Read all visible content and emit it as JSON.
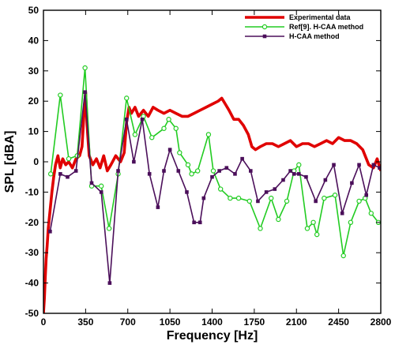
{
  "chart_data": {
    "type": "line",
    "xlabel": "Frequency [Hz]",
    "ylabel": "SPL [dBA]",
    "xlim": [
      0,
      2800
    ],
    "ylim": [
      -50,
      50
    ],
    "x_ticks": [
      0,
      350,
      700,
      1050,
      1400,
      1750,
      2100,
      2450,
      2800
    ],
    "y_ticks": [
      -50,
      -40,
      -30,
      -20,
      -10,
      0,
      10,
      20,
      30,
      40,
      50
    ],
    "legend_position": "top-right",
    "grid": false,
    "series": [
      {
        "name": "Experimental data",
        "color": "#e00000",
        "marker": "none",
        "points": [
          [
            0,
            -50
          ],
          [
            8,
            -45
          ],
          [
            15,
            -38
          ],
          [
            22,
            -32
          ],
          [
            30,
            -28
          ],
          [
            40,
            -22
          ],
          [
            55,
            -16
          ],
          [
            70,
            -10
          ],
          [
            85,
            -5
          ],
          [
            100,
            -1
          ],
          [
            120,
            2
          ],
          [
            140,
            -2
          ],
          [
            160,
            1
          ],
          [
            185,
            -1
          ],
          [
            210,
            0
          ],
          [
            240,
            -2
          ],
          [
            270,
            1
          ],
          [
            300,
            2
          ],
          [
            320,
            5
          ],
          [
            340,
            18
          ],
          [
            350,
            23
          ],
          [
            362,
            12
          ],
          [
            380,
            2
          ],
          [
            410,
            -1
          ],
          [
            440,
            1
          ],
          [
            470,
            -2
          ],
          [
            500,
            2
          ],
          [
            530,
            -3
          ],
          [
            560,
            -1
          ],
          [
            600,
            2
          ],
          [
            640,
            0
          ],
          [
            670,
            3
          ],
          [
            690,
            13
          ],
          [
            710,
            18
          ],
          [
            730,
            16
          ],
          [
            760,
            18
          ],
          [
            790,
            15
          ],
          [
            830,
            17
          ],
          [
            870,
            15
          ],
          [
            910,
            18
          ],
          [
            950,
            17
          ],
          [
            1000,
            16
          ],
          [
            1050,
            17
          ],
          [
            1100,
            16
          ],
          [
            1150,
            15
          ],
          [
            1200,
            15
          ],
          [
            1250,
            16
          ],
          [
            1300,
            17
          ],
          [
            1350,
            18
          ],
          [
            1400,
            19
          ],
          [
            1450,
            20
          ],
          [
            1480,
            21
          ],
          [
            1510,
            19
          ],
          [
            1540,
            17
          ],
          [
            1580,
            14
          ],
          [
            1620,
            14
          ],
          [
            1660,
            12
          ],
          [
            1700,
            9
          ],
          [
            1730,
            5
          ],
          [
            1760,
            4
          ],
          [
            1800,
            5
          ],
          [
            1850,
            6
          ],
          [
            1900,
            6
          ],
          [
            1950,
            5
          ],
          [
            2000,
            6
          ],
          [
            2050,
            7
          ],
          [
            2100,
            5
          ],
          [
            2150,
            6
          ],
          [
            2200,
            6
          ],
          [
            2250,
            5
          ],
          [
            2300,
            6
          ],
          [
            2350,
            7
          ],
          [
            2400,
            6
          ],
          [
            2450,
            8
          ],
          [
            2500,
            7
          ],
          [
            2550,
            7
          ],
          [
            2600,
            6
          ],
          [
            2650,
            4
          ],
          [
            2700,
            -1
          ],
          [
            2740,
            -2
          ],
          [
            2770,
            1
          ],
          [
            2800,
            -3
          ]
        ]
      },
      {
        "name": "Ref[9]. H-CAA method",
        "color": "#22cc22",
        "marker": "circle",
        "points": [
          [
            60,
            -4
          ],
          [
            140,
            22
          ],
          [
            210,
            1
          ],
          [
            280,
            2
          ],
          [
            345,
            31
          ],
          [
            400,
            -8
          ],
          [
            480,
            -8
          ],
          [
            545,
            -22
          ],
          [
            620,
            -4
          ],
          [
            690,
            21
          ],
          [
            760,
            9
          ],
          [
            830,
            15
          ],
          [
            900,
            8
          ],
          [
            1000,
            11
          ],
          [
            1040,
            14
          ],
          [
            1100,
            11
          ],
          [
            1130,
            3
          ],
          [
            1200,
            -1
          ],
          [
            1230,
            -4
          ],
          [
            1280,
            -3
          ],
          [
            1370,
            9
          ],
          [
            1410,
            -3
          ],
          [
            1470,
            -9
          ],
          [
            1550,
            -12
          ],
          [
            1620,
            -12
          ],
          [
            1710,
            -13
          ],
          [
            1800,
            -22
          ],
          [
            1890,
            -12
          ],
          [
            1950,
            -19
          ],
          [
            2020,
            -13
          ],
          [
            2080,
            -3
          ],
          [
            2120,
            -1
          ],
          [
            2190,
            -22
          ],
          [
            2240,
            -20
          ],
          [
            2270,
            -24
          ],
          [
            2330,
            -12
          ],
          [
            2420,
            -11
          ],
          [
            2490,
            -31
          ],
          [
            2550,
            -20
          ],
          [
            2620,
            -13
          ],
          [
            2670,
            -12
          ],
          [
            2720,
            -17
          ],
          [
            2780,
            -20
          ]
        ]
      },
      {
        "name": "H-CAA method",
        "color": "#4b0f5a",
        "marker": "square",
        "points": [
          [
            55,
            -23
          ],
          [
            140,
            -4
          ],
          [
            200,
            -5
          ],
          [
            270,
            -3
          ],
          [
            345,
            23
          ],
          [
            400,
            -7
          ],
          [
            480,
            -10
          ],
          [
            550,
            -40
          ],
          [
            620,
            -3
          ],
          [
            690,
            14
          ],
          [
            750,
            0
          ],
          [
            820,
            14
          ],
          [
            880,
            -4
          ],
          [
            950,
            -15
          ],
          [
            1000,
            -3
          ],
          [
            1050,
            4
          ],
          [
            1120,
            -3
          ],
          [
            1190,
            -10
          ],
          [
            1250,
            -20
          ],
          [
            1300,
            -20
          ],
          [
            1330,
            -12
          ],
          [
            1400,
            -5
          ],
          [
            1460,
            -3
          ],
          [
            1520,
            -2
          ],
          [
            1590,
            -4
          ],
          [
            1650,
            1
          ],
          [
            1720,
            -3
          ],
          [
            1780,
            -13
          ],
          [
            1850,
            -10
          ],
          [
            1920,
            -9
          ],
          [
            1990,
            -6
          ],
          [
            2050,
            -3
          ],
          [
            2080,
            -4
          ],
          [
            2120,
            -4
          ],
          [
            2180,
            -5
          ],
          [
            2260,
            -13
          ],
          [
            2340,
            -6
          ],
          [
            2410,
            -1
          ],
          [
            2480,
            -17
          ],
          [
            2560,
            -7
          ],
          [
            2620,
            -1
          ],
          [
            2680,
            -11
          ],
          [
            2740,
            -1
          ],
          [
            2790,
            -2
          ]
        ]
      }
    ]
  }
}
